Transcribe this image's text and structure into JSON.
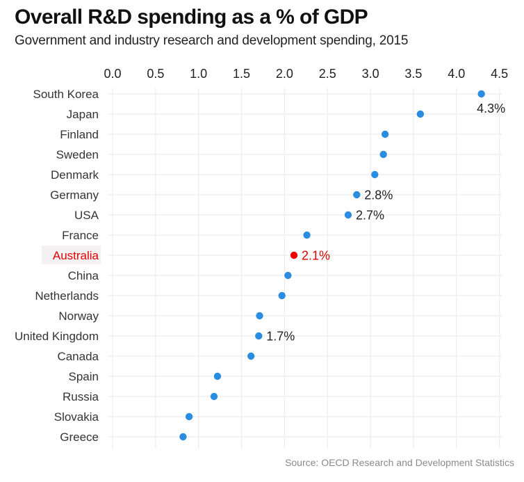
{
  "header": {
    "title": "Overall R&D spending as a % of GDP",
    "subtitle": "Government and industry research and development spending, 2015"
  },
  "footer": {
    "source": "Source: OECD Research and Development Statistics"
  },
  "colors": {
    "point": "#2b8de0",
    "highlight_point": "#ee0000",
    "highlight_label": "#e00000",
    "highlight_label_bg": "#f3f1f1",
    "grid": "#ececec",
    "text": "#222222"
  },
  "chart_data": {
    "type": "scatter",
    "subtype": "dot-plot",
    "title": "Overall R&D spending as a % of GDP",
    "subtitle": "Government and industry research and development spending, 2015",
    "xlabel": "",
    "ylabel": "",
    "xlim": [
      0,
      4.5
    ],
    "x_ticks": [
      "0.0",
      "0.5",
      "1.0",
      "1.5",
      "2.0",
      "2.5",
      "3.0",
      "3.5",
      "4.0",
      "4.5"
    ],
    "x_axis_position": "top",
    "grid": true,
    "legend": "none",
    "highlight": "Australia",
    "categories": [
      "South Korea",
      "Japan",
      "Finland",
      "Sweden",
      "Denmark",
      "Germany",
      "USA",
      "France",
      "Australia",
      "China",
      "Netherlands",
      "Norway",
      "United Kingdom",
      "Canada",
      "Spain",
      "Russia",
      "Slovakia",
      "Greece"
    ],
    "values": [
      4.29,
      3.58,
      3.17,
      3.15,
      3.05,
      2.84,
      2.74,
      2.26,
      2.11,
      2.04,
      1.97,
      1.71,
      1.7,
      1.61,
      1.22,
      1.18,
      0.89,
      0.82
    ],
    "annotations": [
      {
        "category": "South Korea",
        "text": "4.3%",
        "placement": "below"
      },
      {
        "category": "Germany",
        "text": "2.8%",
        "placement": "right"
      },
      {
        "category": "USA",
        "text": "2.7%",
        "placement": "right"
      },
      {
        "category": "Australia",
        "text": "2.1%",
        "placement": "right"
      },
      {
        "category": "United Kingdom",
        "text": "1.7%",
        "placement": "right"
      }
    ]
  }
}
